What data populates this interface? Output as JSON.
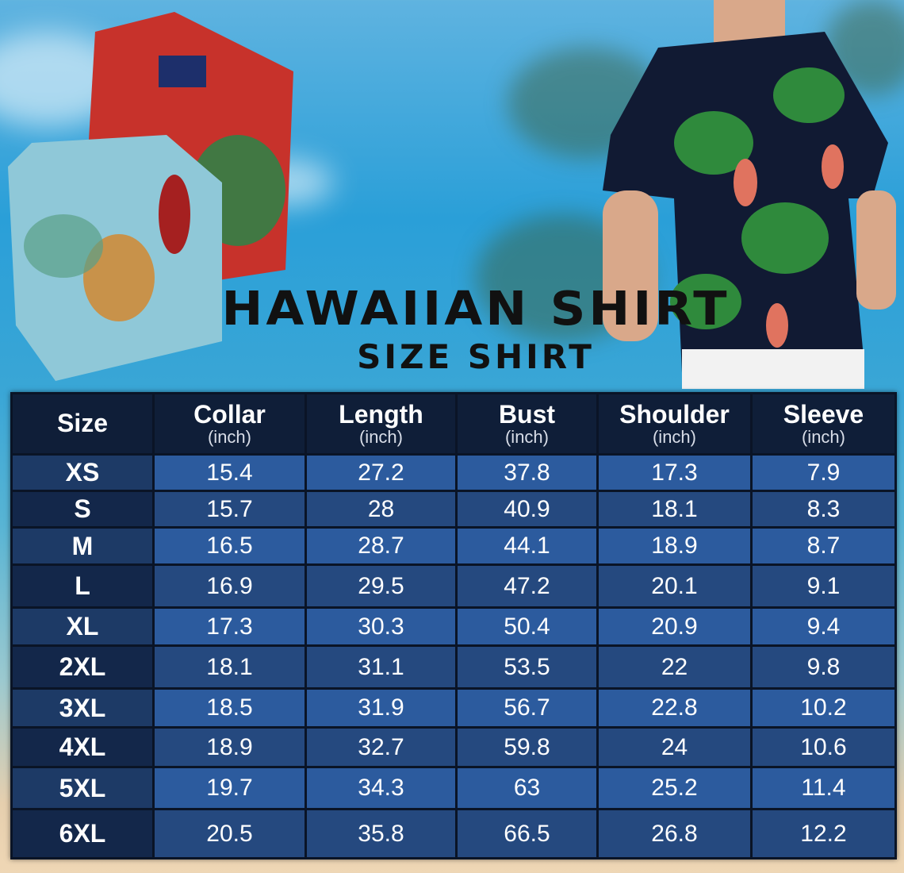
{
  "title": "HAWAIIAN SHIRT",
  "subtitle": "SIZE SHIRT",
  "colors": {
    "header": "#0f1e38",
    "row_light": "#2c5b9e",
    "row_dark": "#25497f",
    "size_col": "#13274a"
  },
  "table": {
    "headers": [
      {
        "label": "Size",
        "unit": ""
      },
      {
        "label": "Collar",
        "unit": "(inch)"
      },
      {
        "label": "Length",
        "unit": "(inch)"
      },
      {
        "label": "Bust",
        "unit": "(inch)"
      },
      {
        "label": "Shoulder",
        "unit": "(inch)"
      },
      {
        "label": "Sleeve",
        "unit": "(inch)"
      }
    ],
    "rows": [
      [
        "XS",
        "15.4",
        "27.2",
        "37.8",
        "17.3",
        "7.9"
      ],
      [
        "S",
        "15.7",
        "28",
        "40.9",
        "18.1",
        "8.3"
      ],
      [
        "M",
        "16.5",
        "28.7",
        "44.1",
        "18.9",
        "8.7"
      ],
      [
        "L",
        "16.9",
        "29.5",
        "47.2",
        "20.1",
        "9.1"
      ],
      [
        "XL",
        "17.3",
        "30.3",
        "50.4",
        "20.9",
        "9.4"
      ],
      [
        "2XL",
        "18.1",
        "31.1",
        "53.5",
        "22",
        "9.8"
      ],
      [
        "3XL",
        "18.5",
        "31.9",
        "56.7",
        "22.8",
        "10.2"
      ],
      [
        "4XL",
        "18.9",
        "32.7",
        "59.8",
        "24",
        "10.6"
      ],
      [
        "5XL",
        "19.7",
        "34.3",
        "63",
        "25.2",
        "11.4"
      ],
      [
        "6XL",
        "20.5",
        "35.8",
        "66.5",
        "26.8",
        "12.2"
      ]
    ]
  }
}
